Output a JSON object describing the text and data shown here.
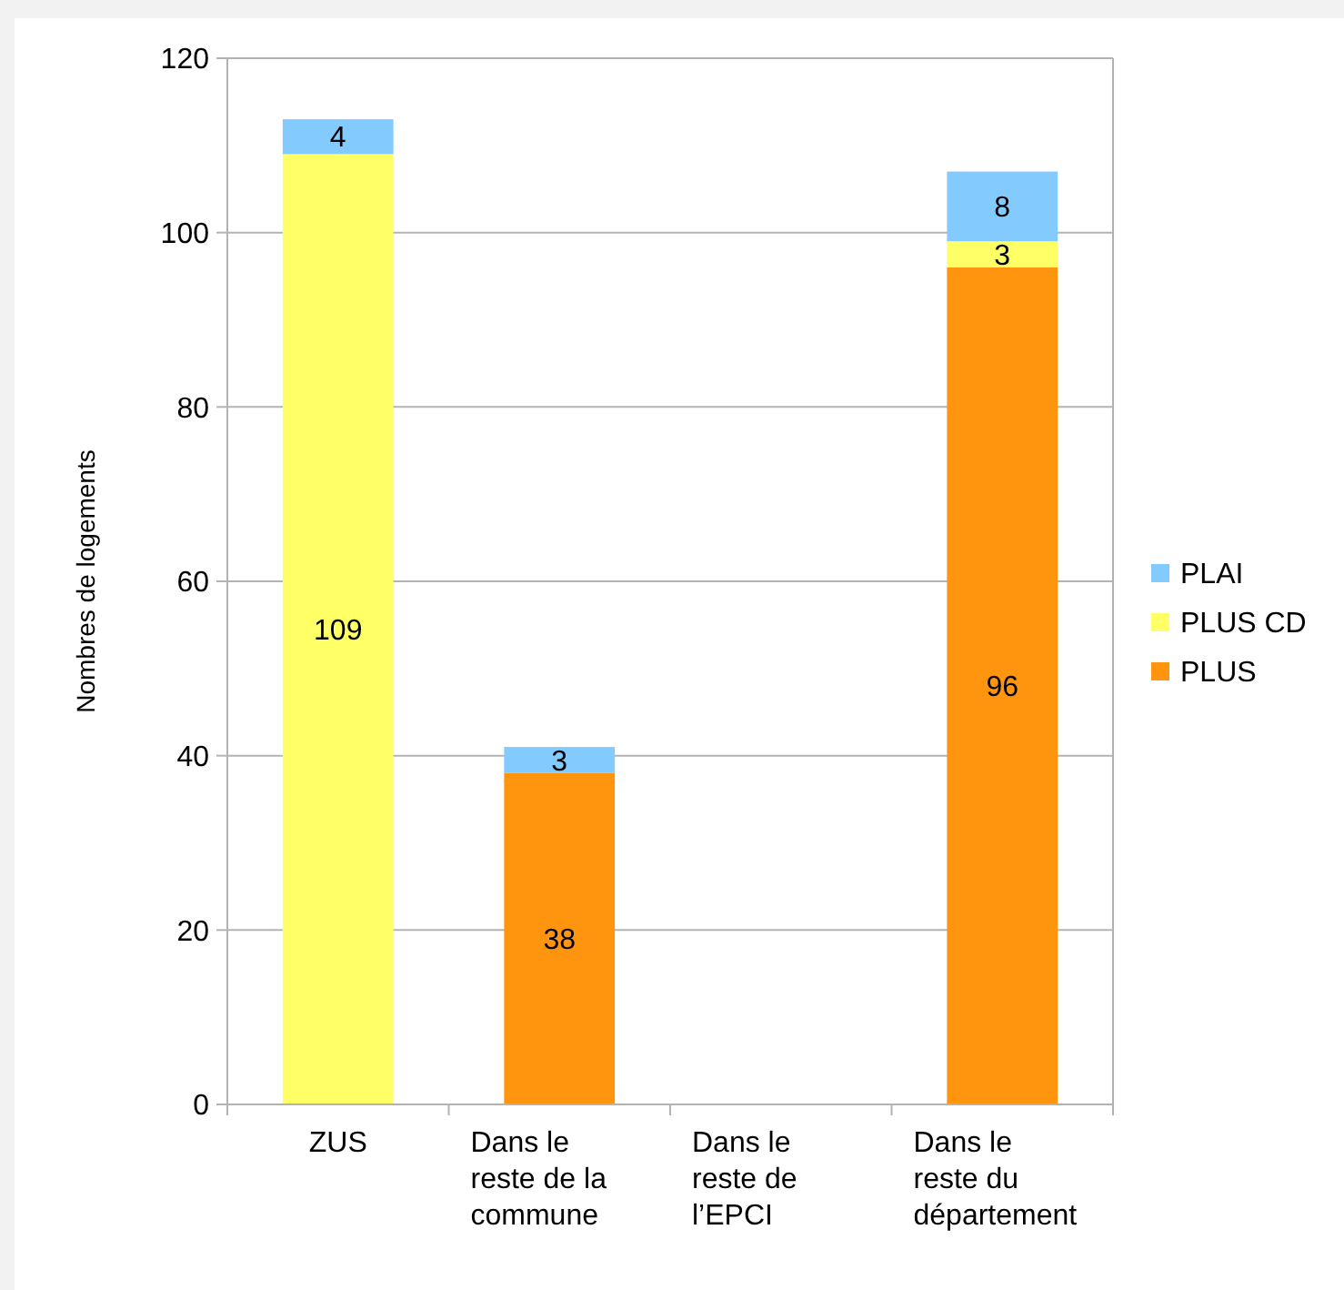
{
  "chart_data": {
    "type": "bar",
    "stacked": true,
    "ylabel": "Nombres de logements",
    "categories": [
      "ZUS",
      "Dans le reste de la commune",
      "Dans le reste de l’EPCI",
      "Dans le reste du département"
    ],
    "series": [
      {
        "name": "PLUS",
        "color": "#ff950e",
        "values": [
          null,
          38,
          null,
          96
        ]
      },
      {
        "name": "PLUS CD",
        "color": "#ffff66",
        "values": [
          109,
          null,
          null,
          3
        ]
      },
      {
        "name": "PLAI",
        "color": "#83caff",
        "values": [
          4,
          3,
          null,
          8
        ]
      }
    ],
    "ylim": [
      0,
      120
    ],
    "yticks": [
      0,
      20,
      40,
      60,
      80,
      100,
      120
    ],
    "grid": "y",
    "legend": "right",
    "data_labels": true
  }
}
